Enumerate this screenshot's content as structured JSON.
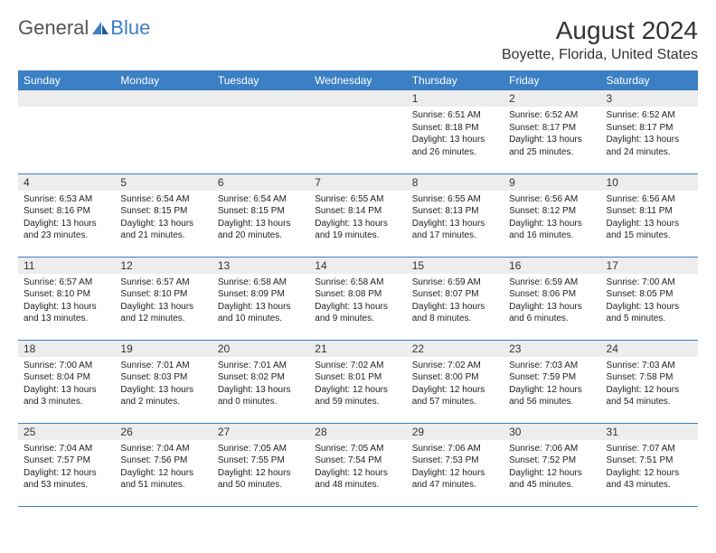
{
  "logo": {
    "general": "General",
    "blue": "Blue"
  },
  "title": "August 2024",
  "location": "Boyette, Florida, United States",
  "colors": {
    "header_bg": "#3b7fc4",
    "header_fg": "#ffffff",
    "daynum_bg": "#ededed",
    "grid_line": "#3b7fc4",
    "text": "#222222",
    "logo_gray": "#555555",
    "logo_blue": "#3b7fc4"
  },
  "weekdays": [
    "Sunday",
    "Monday",
    "Tuesday",
    "Wednesday",
    "Thursday",
    "Friday",
    "Saturday"
  ],
  "weeks": [
    [
      null,
      null,
      null,
      null,
      {
        "num": "1",
        "sunrise": "Sunrise: 6:51 AM",
        "sunset": "Sunset: 8:18 PM",
        "daylight": "Daylight: 13 hours and 26 minutes."
      },
      {
        "num": "2",
        "sunrise": "Sunrise: 6:52 AM",
        "sunset": "Sunset: 8:17 PM",
        "daylight": "Daylight: 13 hours and 25 minutes."
      },
      {
        "num": "3",
        "sunrise": "Sunrise: 6:52 AM",
        "sunset": "Sunset: 8:17 PM",
        "daylight": "Daylight: 13 hours and 24 minutes."
      }
    ],
    [
      {
        "num": "4",
        "sunrise": "Sunrise: 6:53 AM",
        "sunset": "Sunset: 8:16 PM",
        "daylight": "Daylight: 13 hours and 23 minutes."
      },
      {
        "num": "5",
        "sunrise": "Sunrise: 6:54 AM",
        "sunset": "Sunset: 8:15 PM",
        "daylight": "Daylight: 13 hours and 21 minutes."
      },
      {
        "num": "6",
        "sunrise": "Sunrise: 6:54 AM",
        "sunset": "Sunset: 8:15 PM",
        "daylight": "Daylight: 13 hours and 20 minutes."
      },
      {
        "num": "7",
        "sunrise": "Sunrise: 6:55 AM",
        "sunset": "Sunset: 8:14 PM",
        "daylight": "Daylight: 13 hours and 19 minutes."
      },
      {
        "num": "8",
        "sunrise": "Sunrise: 6:55 AM",
        "sunset": "Sunset: 8:13 PM",
        "daylight": "Daylight: 13 hours and 17 minutes."
      },
      {
        "num": "9",
        "sunrise": "Sunrise: 6:56 AM",
        "sunset": "Sunset: 8:12 PM",
        "daylight": "Daylight: 13 hours and 16 minutes."
      },
      {
        "num": "10",
        "sunrise": "Sunrise: 6:56 AM",
        "sunset": "Sunset: 8:11 PM",
        "daylight": "Daylight: 13 hours and 15 minutes."
      }
    ],
    [
      {
        "num": "11",
        "sunrise": "Sunrise: 6:57 AM",
        "sunset": "Sunset: 8:10 PM",
        "daylight": "Daylight: 13 hours and 13 minutes."
      },
      {
        "num": "12",
        "sunrise": "Sunrise: 6:57 AM",
        "sunset": "Sunset: 8:10 PM",
        "daylight": "Daylight: 13 hours and 12 minutes."
      },
      {
        "num": "13",
        "sunrise": "Sunrise: 6:58 AM",
        "sunset": "Sunset: 8:09 PM",
        "daylight": "Daylight: 13 hours and 10 minutes."
      },
      {
        "num": "14",
        "sunrise": "Sunrise: 6:58 AM",
        "sunset": "Sunset: 8:08 PM",
        "daylight": "Daylight: 13 hours and 9 minutes."
      },
      {
        "num": "15",
        "sunrise": "Sunrise: 6:59 AM",
        "sunset": "Sunset: 8:07 PM",
        "daylight": "Daylight: 13 hours and 8 minutes."
      },
      {
        "num": "16",
        "sunrise": "Sunrise: 6:59 AM",
        "sunset": "Sunset: 8:06 PM",
        "daylight": "Daylight: 13 hours and 6 minutes."
      },
      {
        "num": "17",
        "sunrise": "Sunrise: 7:00 AM",
        "sunset": "Sunset: 8:05 PM",
        "daylight": "Daylight: 13 hours and 5 minutes."
      }
    ],
    [
      {
        "num": "18",
        "sunrise": "Sunrise: 7:00 AM",
        "sunset": "Sunset: 8:04 PM",
        "daylight": "Daylight: 13 hours and 3 minutes."
      },
      {
        "num": "19",
        "sunrise": "Sunrise: 7:01 AM",
        "sunset": "Sunset: 8:03 PM",
        "daylight": "Daylight: 13 hours and 2 minutes."
      },
      {
        "num": "20",
        "sunrise": "Sunrise: 7:01 AM",
        "sunset": "Sunset: 8:02 PM",
        "daylight": "Daylight: 13 hours and 0 minutes."
      },
      {
        "num": "21",
        "sunrise": "Sunrise: 7:02 AM",
        "sunset": "Sunset: 8:01 PM",
        "daylight": "Daylight: 12 hours and 59 minutes."
      },
      {
        "num": "22",
        "sunrise": "Sunrise: 7:02 AM",
        "sunset": "Sunset: 8:00 PM",
        "daylight": "Daylight: 12 hours and 57 minutes."
      },
      {
        "num": "23",
        "sunrise": "Sunrise: 7:03 AM",
        "sunset": "Sunset: 7:59 PM",
        "daylight": "Daylight: 12 hours and 56 minutes."
      },
      {
        "num": "24",
        "sunrise": "Sunrise: 7:03 AM",
        "sunset": "Sunset: 7:58 PM",
        "daylight": "Daylight: 12 hours and 54 minutes."
      }
    ],
    [
      {
        "num": "25",
        "sunrise": "Sunrise: 7:04 AM",
        "sunset": "Sunset: 7:57 PM",
        "daylight": "Daylight: 12 hours and 53 minutes."
      },
      {
        "num": "26",
        "sunrise": "Sunrise: 7:04 AM",
        "sunset": "Sunset: 7:56 PM",
        "daylight": "Daylight: 12 hours and 51 minutes."
      },
      {
        "num": "27",
        "sunrise": "Sunrise: 7:05 AM",
        "sunset": "Sunset: 7:55 PM",
        "daylight": "Daylight: 12 hours and 50 minutes."
      },
      {
        "num": "28",
        "sunrise": "Sunrise: 7:05 AM",
        "sunset": "Sunset: 7:54 PM",
        "daylight": "Daylight: 12 hours and 48 minutes."
      },
      {
        "num": "29",
        "sunrise": "Sunrise: 7:06 AM",
        "sunset": "Sunset: 7:53 PM",
        "daylight": "Daylight: 12 hours and 47 minutes."
      },
      {
        "num": "30",
        "sunrise": "Sunrise: 7:06 AM",
        "sunset": "Sunset: 7:52 PM",
        "daylight": "Daylight: 12 hours and 45 minutes."
      },
      {
        "num": "31",
        "sunrise": "Sunrise: 7:07 AM",
        "sunset": "Sunset: 7:51 PM",
        "daylight": "Daylight: 12 hours and 43 minutes."
      }
    ]
  ]
}
